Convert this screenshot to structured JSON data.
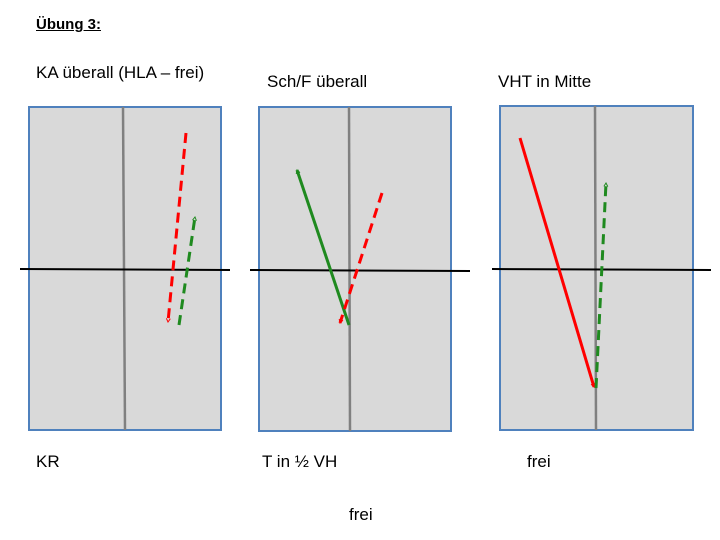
{
  "slide": {
    "title": "Übung 3:",
    "footer": "frei"
  },
  "exercises": [
    {
      "top_label": "KA überall (HLA – frei)",
      "bottom_label": "KR"
    },
    {
      "top_label": "Sch/F überall",
      "bottom_label": "T in ½ VH"
    },
    {
      "top_label": "VHT in Mitte",
      "bottom_label": "frei"
    }
  ],
  "colors": {
    "field_fill": "#d9d9d9",
    "field_border": "#4f81bd",
    "center_line": "#808080",
    "midline": "#000000",
    "red_arrow": "#ff0000",
    "green_arrow": "#1f8a1f"
  }
}
